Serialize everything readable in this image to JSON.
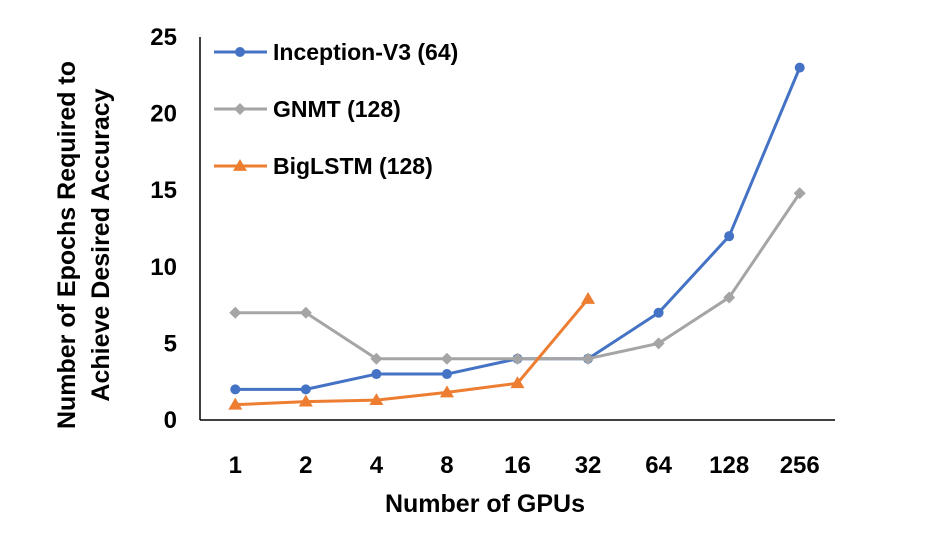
{
  "chart_data": {
    "type": "line",
    "categories": [
      "1",
      "2",
      "4",
      "8",
      "16",
      "32",
      "64",
      "128",
      "256"
    ],
    "xlabel": "Number of GPUs",
    "ylabel_lines": [
      "Number of Epochs Required to",
      "Achieve Desired Accuracy"
    ],
    "ylim": [
      0,
      25
    ],
    "yticks": [
      0,
      5,
      10,
      15,
      20,
      25
    ],
    "grid": false,
    "legend_position": "top-left",
    "series": [
      {
        "name": "Inception-V3 (64)",
        "color": "#4472C4",
        "marker": "circle",
        "values": [
          2,
          2,
          3,
          3,
          4,
          4,
          7,
          12,
          23
        ]
      },
      {
        "name": "GNMT (128)",
        "color": "#A5A5A5",
        "marker": "diamond",
        "values": [
          7,
          7,
          4,
          4,
          4,
          4,
          5,
          8,
          14.8
        ]
      },
      {
        "name": "BigLSTM (128)",
        "color": "#ED7D31",
        "marker": "triangle",
        "values": [
          1,
          1.2,
          1.3,
          1.8,
          2.4,
          7.9,
          null,
          null,
          null
        ]
      }
    ]
  }
}
